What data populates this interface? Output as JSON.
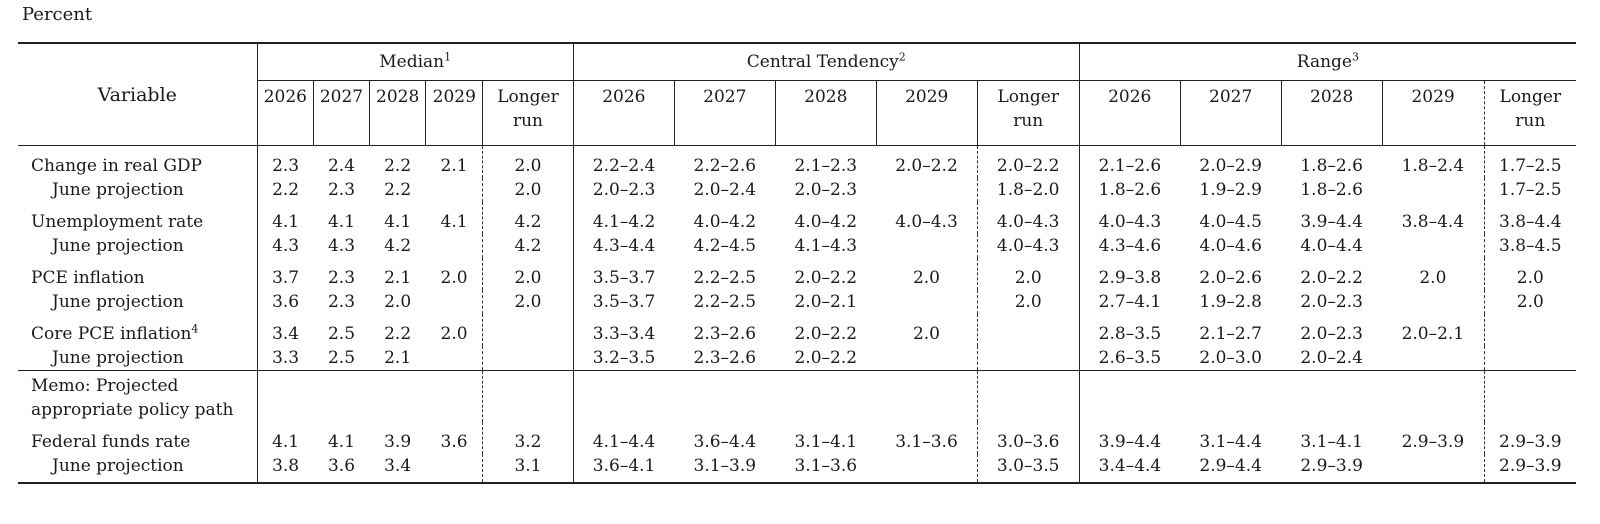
{
  "unit_label": "Percent",
  "header": {
    "variable": "Variable",
    "groups": [
      {
        "label": "Median",
        "note": "1"
      },
      {
        "label": "Central Tendency",
        "note": "2"
      },
      {
        "label": "Range",
        "note": "3"
      }
    ],
    "years": [
      "2026",
      "2027",
      "2028",
      "2029"
    ],
    "longer_run": [
      "Longer",
      "run"
    ]
  },
  "rows": [
    {
      "label": "Change in real GDP",
      "note": "",
      "sub": false,
      "median": [
        "2.3",
        "2.4",
        "2.2",
        "2.1",
        "2.0"
      ],
      "central": [
        "2.2–2.4",
        "2.2–2.6",
        "2.1–2.3",
        "2.0–2.2",
        "2.0–2.2"
      ],
      "range": [
        "2.1–2.6",
        "2.0–2.9",
        "1.8–2.6",
        "1.8–2.4",
        "1.7–2.5"
      ]
    },
    {
      "label": "June projection",
      "note": "",
      "sub": true,
      "median": [
        "2.2",
        "2.3",
        "2.2",
        "",
        "2.0"
      ],
      "central": [
        "2.0–2.3",
        "2.0–2.4",
        "2.0–2.3",
        "",
        "1.8–2.0"
      ],
      "range": [
        "1.8–2.6",
        "1.9–2.9",
        "1.8–2.6",
        "",
        "1.7–2.5"
      ]
    },
    {
      "label": "Unemployment rate",
      "note": "",
      "sub": false,
      "median": [
        "4.1",
        "4.1",
        "4.1",
        "4.1",
        "4.2"
      ],
      "central": [
        "4.1–4.2",
        "4.0–4.2",
        "4.0–4.2",
        "4.0–4.3",
        "4.0–4.3"
      ],
      "range": [
        "4.0–4.3",
        "4.0–4.5",
        "3.9–4.4",
        "3.8–4.4",
        "3.8–4.4"
      ]
    },
    {
      "label": "June projection",
      "note": "",
      "sub": true,
      "median": [
        "4.3",
        "4.3",
        "4.2",
        "",
        "4.2"
      ],
      "central": [
        "4.3–4.4",
        "4.2–4.5",
        "4.1–4.3",
        "",
        "4.0–4.3"
      ],
      "range": [
        "4.3–4.6",
        "4.0–4.6",
        "4.0–4.4",
        "",
        "3.8–4.5"
      ]
    },
    {
      "label": "PCE inflation",
      "note": "",
      "sub": false,
      "median": [
        "3.7",
        "2.3",
        "2.1",
        "2.0",
        "2.0"
      ],
      "central": [
        "3.5–3.7",
        "2.2–2.5",
        "2.0–2.2",
        "2.0",
        "2.0"
      ],
      "range": [
        "2.9–3.8",
        "2.0–2.6",
        "2.0–2.2",
        "2.0",
        "2.0"
      ]
    },
    {
      "label": "June projection",
      "note": "",
      "sub": true,
      "median": [
        "3.6",
        "2.3",
        "2.0",
        "",
        "2.0"
      ],
      "central": [
        "3.5–3.7",
        "2.2–2.5",
        "2.0–2.1",
        "",
        "2.0"
      ],
      "range": [
        "2.7–4.1",
        "1.9–2.8",
        "2.0–2.3",
        "",
        "2.0"
      ]
    },
    {
      "label": "Core PCE inflation",
      "note": "4",
      "sub": false,
      "median": [
        "3.4",
        "2.5",
        "2.2",
        "2.0",
        ""
      ],
      "central": [
        "3.3–3.4",
        "2.3–2.6",
        "2.0–2.2",
        "2.0",
        ""
      ],
      "range": [
        "2.8–3.5",
        "2.1–2.7",
        "2.0–2.3",
        "2.0–2.1",
        ""
      ]
    },
    {
      "label": "June projection",
      "note": "",
      "sub": true,
      "median": [
        "3.3",
        "2.5",
        "2.1",
        "",
        ""
      ],
      "central": [
        "3.2–3.5",
        "2.3–2.6",
        "2.0–2.2",
        "",
        ""
      ],
      "range": [
        "2.6–3.5",
        "2.0–3.0",
        "2.0–2.4",
        "",
        ""
      ]
    }
  ],
  "memo": {
    "line1": "Memo: Projected",
    "line2": "appropriate policy path"
  },
  "memo_rows": [
    {
      "label": "Federal funds rate",
      "note": "",
      "sub": false,
      "median": [
        "4.1",
        "4.1",
        "3.9",
        "3.6",
        "3.2"
      ],
      "central": [
        "4.1–4.4",
        "3.6–4.4",
        "3.1–4.1",
        "3.1–3.6",
        "3.0–3.6"
      ],
      "range": [
        "3.9–4.4",
        "3.1–4.4",
        "3.1–4.1",
        "2.9–3.9",
        "2.9–3.9"
      ]
    },
    {
      "label": "June projection",
      "note": "",
      "sub": true,
      "median": [
        "3.8",
        "3.6",
        "3.4",
        "",
        "3.1"
      ],
      "central": [
        "3.6–4.1",
        "3.1–3.9",
        "3.1–3.6",
        "",
        "3.0–3.5"
      ],
      "range": [
        "3.4–4.4",
        "2.9–4.4",
        "2.9–3.9",
        "",
        "2.9–3.9"
      ]
    }
  ]
}
